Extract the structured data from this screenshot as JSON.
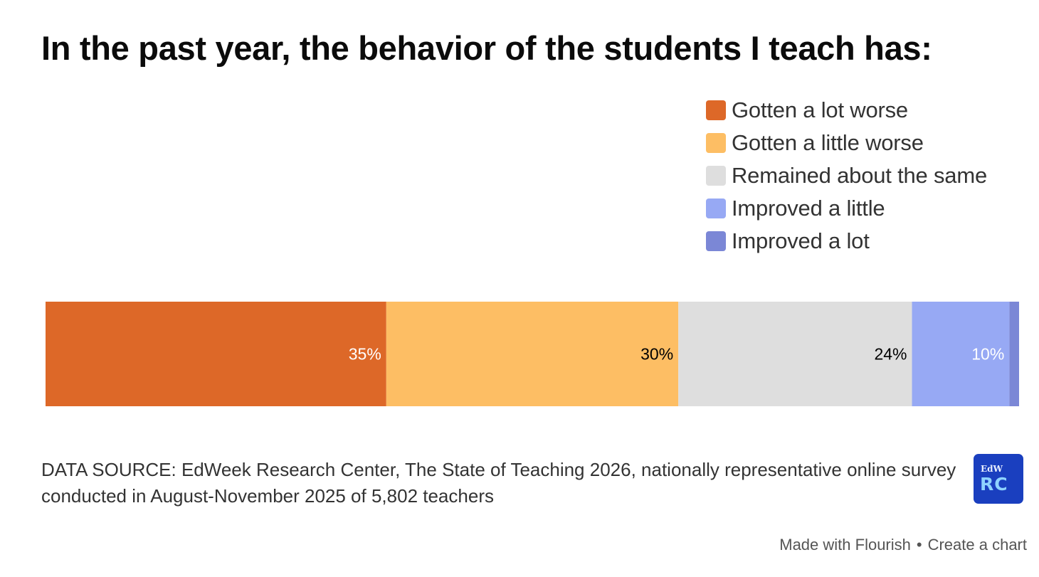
{
  "chart_data": {
    "type": "bar",
    "orientation": "horizontal-stacked",
    "title": "In the past year, the behavior of the students I teach has:",
    "series": [
      {
        "name": "Gotten a lot worse",
        "value": 35,
        "label": "35%",
        "color": "#dd6828",
        "label_color": "#ffffff"
      },
      {
        "name": "Gotten a little worse",
        "value": 30,
        "label": "30%",
        "color": "#fdbe64",
        "label_color": "#000000"
      },
      {
        "name": "Remained about the same",
        "value": 24,
        "label": "24%",
        "color": "#dedede",
        "label_color": "#000000"
      },
      {
        "name": "Improved a little",
        "value": 10,
        "label": "10%",
        "color": "#97a9f4",
        "label_color": "#ffffff"
      },
      {
        "name": "Improved a lot",
        "value": 1,
        "label": "",
        "color": "#7b87d6",
        "label_color": "#ffffff"
      }
    ],
    "total": 100,
    "legend_position": "top-right",
    "xlabel": "",
    "ylabel": ""
  },
  "source": {
    "text": "DATA SOURCE: EdWeek Research Center, The State of Teaching 2026, nationally representative online survey conducted in August-November 2025 of 5,802 teachers"
  },
  "logo": {
    "top": "EdW",
    "bottom": "RC"
  },
  "footer": {
    "made_with": "Made with Flourish",
    "separator": "•",
    "create": "Create a chart"
  }
}
